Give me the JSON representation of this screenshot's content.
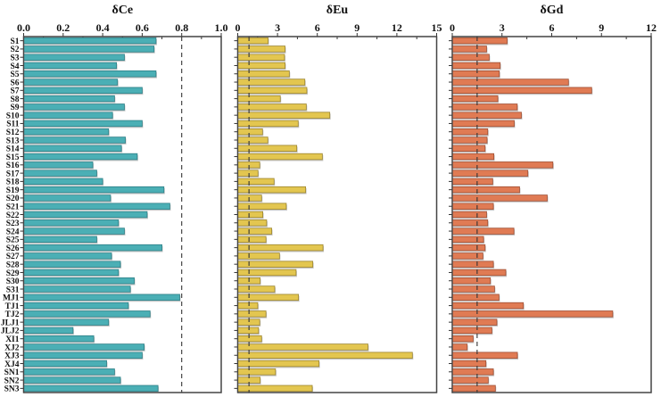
{
  "chart_data": {
    "type": "bar",
    "orientation": "horizontal",
    "categories": [
      "S1",
      "S2",
      "S3",
      "S4",
      "S5",
      "S6",
      "S7",
      "S8",
      "S9",
      "S10",
      "S11",
      "S12",
      "S13",
      "S14",
      "S15",
      "S16",
      "S17",
      "S18",
      "S19",
      "S20",
      "S21",
      "S22",
      "S23",
      "S24",
      "S25",
      "S26",
      "S27",
      "S28",
      "S29",
      "S30",
      "S31",
      "MJ1",
      "TJ1",
      "TJ2",
      "JLJ1",
      "JLJ2",
      "XI1",
      "XJ2",
      "XJ3",
      "XJ4",
      "SN1",
      "SN2",
      "SN3"
    ],
    "panels": [
      {
        "title": "δCe",
        "color": "#4BAFB5",
        "edge_color": "#2E7F86",
        "xlim": [
          0,
          1.0
        ],
        "ticks": [
          0.0,
          0.2,
          0.4,
          0.6,
          0.8,
          1.0
        ],
        "tick_labels": [
          "0.0",
          "0.2",
          "0.4",
          "0.6",
          "0.8",
          "1.0"
        ],
        "reference_line": 0.8,
        "values": [
          0.67,
          0.66,
          0.51,
          0.47,
          0.67,
          0.475,
          0.6,
          0.46,
          0.51,
          0.45,
          0.6,
          0.43,
          0.515,
          0.495,
          0.575,
          0.35,
          0.37,
          0.4,
          0.71,
          0.44,
          0.74,
          0.625,
          0.48,
          0.51,
          0.37,
          0.7,
          0.445,
          0.49,
          0.48,
          0.56,
          0.54,
          0.79,
          0.53,
          0.64,
          0.43,
          0.25,
          0.355,
          0.61,
          0.6,
          0.42,
          0.46,
          0.49,
          0.68
        ]
      },
      {
        "title": "δEu",
        "color": "#E3C650",
        "edge_color": "#9C8530",
        "xlim": [
          0,
          15
        ],
        "ticks": [
          0,
          3,
          6,
          9,
          12,
          15
        ],
        "tick_labels": [
          "0",
          "3",
          "6",
          "9",
          "12",
          "15"
        ],
        "reference_line": 0.85,
        "values": [
          2.29,
          3.57,
          3.53,
          3.57,
          3.89,
          5.06,
          5.21,
          3.21,
          5.17,
          6.94,
          4.56,
          1.87,
          2.27,
          4.45,
          6.38,
          1.66,
          1.53,
          2.74,
          5.12,
          1.8,
          3.66,
          1.89,
          2.18,
          2.56,
          2.13,
          6.43,
          3.15,
          5.66,
          4.4,
          1.69,
          2.79,
          4.58,
          1.51,
          2.13,
          1.66,
          1.57,
          1.8,
          9.82,
          13.17,
          6.13,
          2.85,
          1.69,
          5.62
        ]
      },
      {
        "title": "δGd",
        "color": "#E07B54",
        "edge_color": "#9E4E33",
        "xlim": [
          0,
          12
        ],
        "ticks": [
          0,
          3,
          6,
          9,
          12
        ],
        "tick_labels": [
          "0",
          "3",
          "6",
          "9",
          "12"
        ],
        "reference_line": 1.5,
        "values": [
          3.31,
          2.07,
          2.23,
          2.89,
          2.84,
          7.01,
          8.41,
          2.75,
          3.92,
          4.17,
          3.74,
          2.14,
          2.1,
          1.98,
          2.51,
          6.07,
          4.56,
          2.44,
          4.06,
          5.73,
          2.48,
          2.07,
          2.14,
          3.72,
          1.89,
          1.98,
          1.85,
          2.48,
          3.23,
          2.3,
          2.55,
          2.82,
          4.29,
          9.68,
          2.69,
          2.39,
          1.26,
          0.9,
          3.93,
          2.03,
          2.48,
          2.17,
          2.6
        ]
      }
    ],
    "xlabel": "",
    "ylabel": "",
    "grid": false,
    "legend": "none"
  }
}
